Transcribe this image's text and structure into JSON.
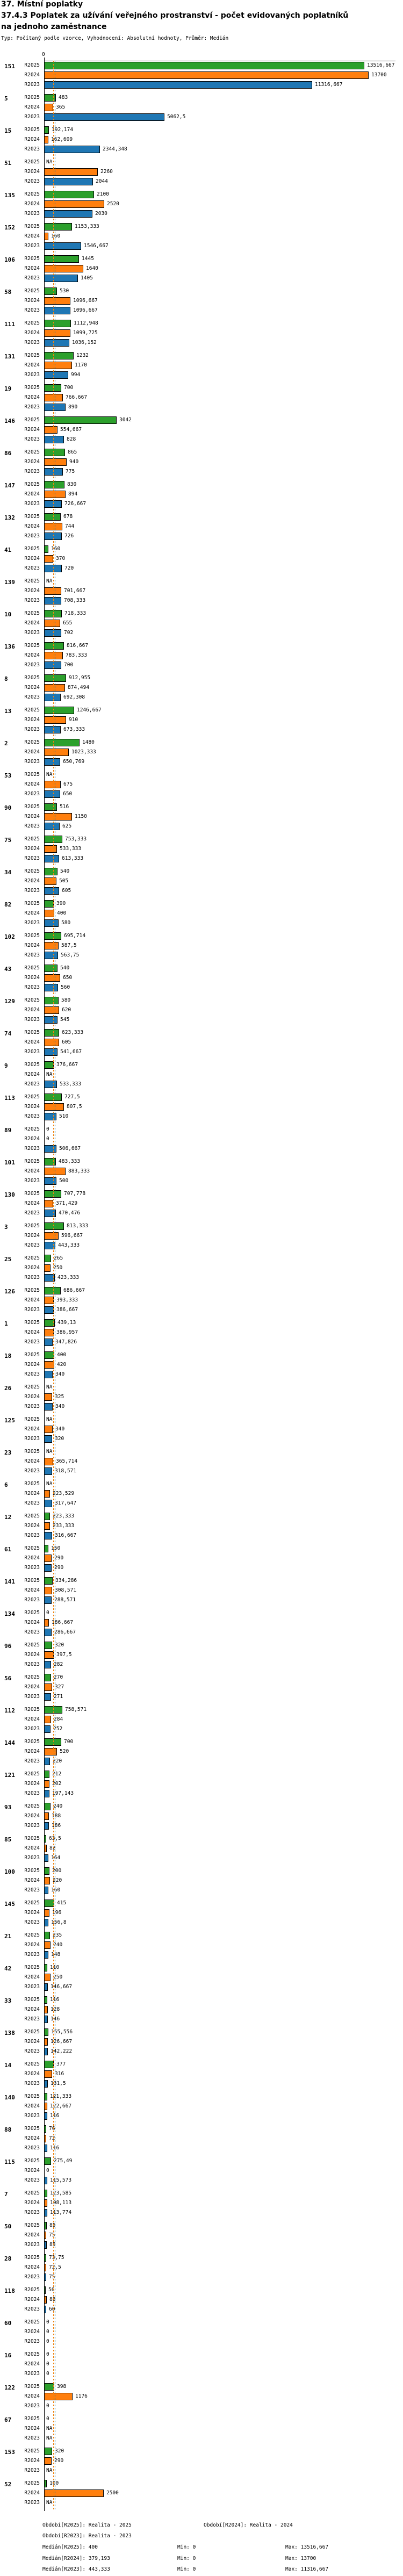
{
  "title": {
    "line1": "37. Místní poplatky",
    "line2": "37.4.3 Poplatek za užívání veřejného prostranství - počet evidovaných poplatníků",
    "line3": "na jednoho zaměstnance",
    "meta": "Typ: Počítaný podle vzorce, Vyhodnocení: Absolutní hodnoty, Průměr: Medián"
  },
  "axis": {
    "zero_label": "0"
  },
  "colors": {
    "r2025": "#2ca02c",
    "r2024": "#ff7f0e",
    "r2023": "#1f77b4"
  },
  "legend": {
    "period_r2025": "Období[R2025]: Realita - 2025",
    "period_r2024": "Období[R2024]: Realita - 2024",
    "period_r2023": "Období[R2023]: Realita - 2023",
    "median_r2025": "Medián[R2025]: 400",
    "median_r2024": "Medián[R2024]: 379,193",
    "median_r2023": "Medián[R2023]: 443,333",
    "min_r2025": "Min: 0",
    "min_r2024": "Min: 0",
    "min_r2023": "Min: 0",
    "max_r2025": "Max: 13516,667",
    "max_r2024": "Max: 13700",
    "max_r2023": "Max: 11316,667"
  },
  "chart_data": {
    "type": "bar",
    "orientation": "horizontal",
    "title": "37.4.3 Poplatek za užívání veřejného prostranství - počet evidovaných poplatníků na jednoho zaměstnance",
    "series_labels": [
      "R2025",
      "R2024",
      "R2023"
    ],
    "na_label": "NA",
    "x_axis": {
      "min": 0,
      "tick_labels": [
        "0"
      ],
      "max_shown_value": 13700
    },
    "medians": {
      "R2025": 400,
      "R2024": 379.193,
      "R2023": 443.333
    },
    "stats": {
      "R2025": {
        "median": "400",
        "min": "0",
        "max": "13516,667"
      },
      "R2024": {
        "median": "379,193",
        "min": "0",
        "max": "13700"
      },
      "R2023": {
        "median": "443,333",
        "min": "0",
        "max": "11316,667"
      }
    },
    "groups": [
      {
        "id": "151",
        "v": [
          "13516,667",
          "13700",
          "11316,667"
        ]
      },
      {
        "id": "5",
        "v": [
          "483",
          "365",
          "5062,5"
        ]
      },
      {
        "id": "15",
        "v": [
          "192,174",
          "162,609",
          "2344,348"
        ]
      },
      {
        "id": "51",
        "v": [
          "NA",
          "2260",
          "2044"
        ]
      },
      {
        "id": "135",
        "v": [
          "2100",
          "2520",
          "2030"
        ]
      },
      {
        "id": "152",
        "v": [
          "1153,333",
          "160",
          "1546,667"
        ]
      },
      {
        "id": "106",
        "v": [
          "1445",
          "1640",
          "1405"
        ]
      },
      {
        "id": "58",
        "v": [
          "530",
          "1096,667",
          "1096,667"
        ]
      },
      {
        "id": "111",
        "v": [
          "1112,948",
          "1099,725",
          "1036,152"
        ]
      },
      {
        "id": "131",
        "v": [
          "1232",
          "1170",
          "994"
        ]
      },
      {
        "id": "19",
        "v": [
          "700",
          "766,667",
          "890"
        ]
      },
      {
        "id": "146",
        "v": [
          "3042",
          "554,667",
          "828"
        ]
      },
      {
        "id": "86",
        "v": [
          "865",
          "940",
          "775"
        ]
      },
      {
        "id": "147",
        "v": [
          "830",
          "894",
          "726,667"
        ]
      },
      {
        "id": "132",
        "v": [
          "678",
          "744",
          "726"
        ]
      },
      {
        "id": "41",
        "v": [
          "160",
          "370",
          "720"
        ]
      },
      {
        "id": "139",
        "v": [
          "NA",
          "701,667",
          "708,333"
        ]
      },
      {
        "id": "10",
        "v": [
          "718,333",
          "655",
          "702"
        ]
      },
      {
        "id": "136",
        "v": [
          "816,667",
          "783,333",
          "700"
        ]
      },
      {
        "id": "8",
        "v": [
          "912,955",
          "874,494",
          "692,308"
        ]
      },
      {
        "id": "13",
        "v": [
          "1246,667",
          "910",
          "673,333"
        ]
      },
      {
        "id": "2",
        "v": [
          "1480",
          "1023,333",
          "650,769"
        ]
      },
      {
        "id": "53",
        "v": [
          "NA",
          "675",
          "650"
        ]
      },
      {
        "id": "90",
        "v": [
          "516",
          "1150",
          "625"
        ]
      },
      {
        "id": "75",
        "v": [
          "753,333",
          "533,333",
          "613,333"
        ]
      },
      {
        "id": "34",
        "v": [
          "540",
          "505",
          "605"
        ]
      },
      {
        "id": "82",
        "v": [
          "390",
          "400",
          "580"
        ]
      },
      {
        "id": "102",
        "v": [
          "695,714",
          "587,5",
          "563,75"
        ]
      },
      {
        "id": "43",
        "v": [
          "540",
          "650",
          "560"
        ]
      },
      {
        "id": "129",
        "v": [
          "580",
          "620",
          "545"
        ]
      },
      {
        "id": "74",
        "v": [
          "623,333",
          "605",
          "541,667"
        ]
      },
      {
        "id": "9",
        "v": [
          "376,667",
          "NA",
          "533,333"
        ]
      },
      {
        "id": "113",
        "v": [
          "727,5",
          "807,5",
          "510"
        ]
      },
      {
        "id": "89",
        "v": [
          "0",
          "0",
          "506,667"
        ]
      },
      {
        "id": "101",
        "v": [
          "483,333",
          "883,333",
          "500"
        ]
      },
      {
        "id": "130",
        "v": [
          "707,778",
          "371,429",
          "470,476"
        ]
      },
      {
        "id": "3",
        "v": [
          "813,333",
          "596,667",
          "443,333"
        ]
      },
      {
        "id": "25",
        "v": [
          "265",
          "250",
          "423,333"
        ]
      },
      {
        "id": "126",
        "v": [
          "686,667",
          "393,333",
          "386,667"
        ]
      },
      {
        "id": "1",
        "v": [
          "439,13",
          "386,957",
          "347,826"
        ]
      },
      {
        "id": "18",
        "v": [
          "400",
          "420",
          "340"
        ]
      },
      {
        "id": "26",
        "v": [
          "NA",
          "325",
          "340"
        ]
      },
      {
        "id": "125",
        "v": [
          "NA",
          "340",
          "320"
        ]
      },
      {
        "id": "23",
        "v": [
          "NA",
          "365,714",
          "318,571"
        ]
      },
      {
        "id": "6",
        "v": [
          "NA",
          "223,529",
          "317,647"
        ]
      },
      {
        "id": "12",
        "v": [
          "223,333",
          "233,333",
          "316,667"
        ]
      },
      {
        "id": "61",
        "v": [
          "150",
          "290",
          "290"
        ]
      },
      {
        "id": "141",
        "v": [
          "334,286",
          "308,571",
          "288,571"
        ]
      },
      {
        "id": "134",
        "v": [
          "0",
          "186,667",
          "286,667"
        ]
      },
      {
        "id": "96",
        "v": [
          "320",
          "397,5",
          "282"
        ]
      },
      {
        "id": "56",
        "v": [
          "270",
          "327",
          "271"
        ]
      },
      {
        "id": "112",
        "v": [
          "758,571",
          "284",
          "252"
        ]
      },
      {
        "id": "144",
        "v": [
          "700",
          "520",
          "220"
        ]
      },
      {
        "id": "121",
        "v": [
          "212",
          "202",
          "197,143"
        ]
      },
      {
        "id": "93",
        "v": [
          "240",
          "188",
          "186"
        ]
      },
      {
        "id": "85",
        "v": [
          "63,5",
          "82",
          "164"
        ]
      },
      {
        "id": "100",
        "v": [
          "200",
          "220",
          "160"
        ]
      },
      {
        "id": "145",
        "v": [
          "415",
          "196",
          "156,8"
        ]
      },
      {
        "id": "21",
        "v": [
          "235",
          "240",
          "148"
        ]
      },
      {
        "id": "42",
        "v": [
          "110",
          "250",
          "146,667"
        ]
      },
      {
        "id": "33",
        "v": [
          "116",
          "128",
          "146"
        ]
      },
      {
        "id": "138",
        "v": [
          "155,556",
          "126,667",
          "142,222"
        ]
      },
      {
        "id": "14",
        "v": [
          "377",
          "316",
          "131,5"
        ]
      },
      {
        "id": "140",
        "v": [
          "121,333",
          "122,667",
          "116"
        ]
      },
      {
        "id": "88",
        "v": [
          "76",
          "72",
          "116"
        ]
      },
      {
        "id": "115",
        "v": [
          "275,49",
          "0",
          "115,573"
        ]
      },
      {
        "id": "7",
        "v": [
          "123,585",
          "108,113",
          "113,774"
        ]
      },
      {
        "id": "50",
        "v": [
          "85",
          "75",
          "85"
        ]
      },
      {
        "id": "28",
        "v": [
          "73,75",
          "72,5",
          "75"
        ]
      },
      {
        "id": "118",
        "v": [
          "56",
          "88",
          "60"
        ]
      },
      {
        "id": "60",
        "v": [
          "0",
          "0",
          "0"
        ]
      },
      {
        "id": "16",
        "v": [
          "0",
          "0",
          "0"
        ]
      },
      {
        "id": "122",
        "v": [
          "398",
          "1176",
          "0"
        ]
      },
      {
        "id": "67",
        "v": [
          "0",
          "NA",
          "NA"
        ]
      },
      {
        "id": "153",
        "v": [
          "320",
          "290",
          "NA"
        ]
      },
      {
        "id": "52",
        "v": [
          "100",
          "2500",
          "NA"
        ]
      }
    ]
  }
}
